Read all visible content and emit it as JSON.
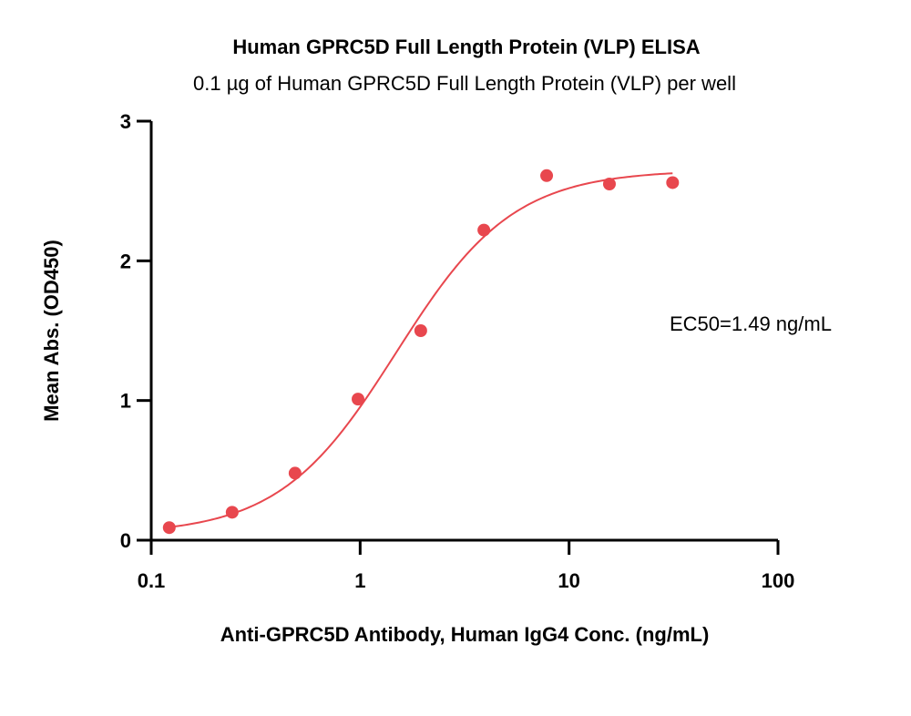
{
  "chart_data": {
    "type": "scatter",
    "title": "Human GPRC5D Full Length Protein (VLP) ELISA",
    "subtitle": "0.1 µg of Human GPRC5D Full Length Protein (VLP) per well",
    "xlabel": "Anti-GPRC5D Antibody, Human IgG4 Conc. (ng/mL)",
    "ylabel": "Mean Abs. (OD450)",
    "x_scale": "log",
    "xlim": [
      0.1,
      100
    ],
    "ylim": [
      0,
      3
    ],
    "x_ticks": [
      "0.1",
      "1",
      "10",
      "100"
    ],
    "y_ticks": [
      "0",
      "1",
      "2",
      "3"
    ],
    "grid": false,
    "color": "#e8474e",
    "series": [
      {
        "x": [
          0.122,
          0.244,
          0.488,
          0.977,
          1.95,
          3.91,
          7.81,
          15.6,
          31.3
        ],
        "y": [
          0.09,
          0.2,
          0.48,
          1.01,
          1.5,
          2.22,
          2.61,
          2.55,
          2.56
        ]
      }
    ],
    "fit_curve": {
      "model": "4PL",
      "bottom": 0.04,
      "top": 2.65,
      "ec50": 1.49,
      "hill": 1.55,
      "x_range": [
        0.122,
        31.3
      ]
    },
    "annotation": "EC50=1.49  ng/mL"
  }
}
